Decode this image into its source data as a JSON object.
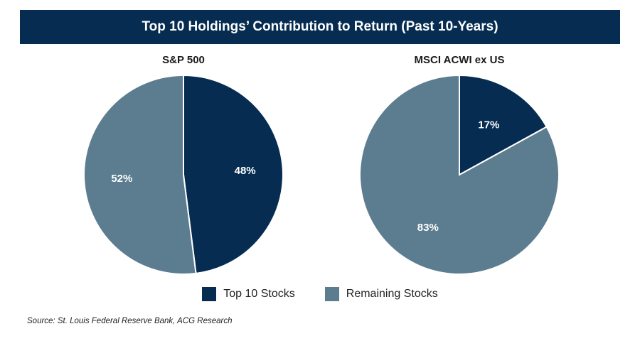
{
  "header": {
    "title": "Top 10 Holdings’ Contribution to Return (Past 10-Years)"
  },
  "colors": {
    "top10": "#062c52",
    "remaining": "#5c7d8f",
    "label": "#ffffff"
  },
  "chart_data": [
    {
      "type": "pie",
      "title": "S&P 500",
      "slices": [
        {
          "label": "Top 10 Stocks",
          "value": 48,
          "display": "48%"
        },
        {
          "label": "Remaining Stocks",
          "value": 52,
          "display": "52%"
        }
      ]
    },
    {
      "type": "pie",
      "title": "MSCI ACWI ex US",
      "slices": [
        {
          "label": "Top 10 Stocks",
          "value": 17,
          "display": "17%"
        },
        {
          "label": "Remaining Stocks",
          "value": 83,
          "display": "83%"
        }
      ]
    }
  ],
  "legend": {
    "items": [
      {
        "label": "Top 10 Stocks"
      },
      {
        "label": "Remaining Stocks"
      }
    ]
  },
  "footer": {
    "source": "Source: St. Louis Federal Reserve Bank, ACG Research"
  }
}
